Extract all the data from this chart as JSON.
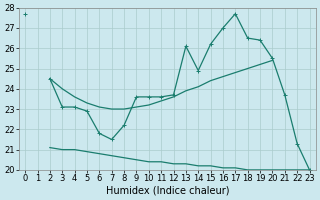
{
  "xlabel": "Humidex (Indice chaleur)",
  "x": [
    0,
    1,
    2,
    3,
    4,
    5,
    6,
    7,
    8,
    9,
    10,
    11,
    12,
    13,
    14,
    15,
    16,
    17,
    18,
    19,
    20,
    21,
    22,
    23
  ],
  "line_jagged": [
    27.7,
    null,
    24.5,
    23.1,
    23.1,
    22.9,
    21.8,
    21.5,
    22.2,
    23.6,
    23.6,
    23.6,
    23.7,
    26.1,
    24.9,
    26.2,
    27.0,
    27.7,
    26.5,
    26.4,
    25.5,
    23.7,
    21.3,
    20.0
  ],
  "line_smooth": [
    null,
    null,
    24.5,
    24.0,
    23.6,
    23.3,
    23.1,
    23.0,
    23.0,
    23.1,
    23.2,
    23.4,
    23.6,
    23.9,
    24.1,
    24.4,
    24.6,
    24.8,
    25.0,
    25.2,
    25.4,
    null,
    null,
    null
  ],
  "line_bottom": [
    null,
    null,
    21.1,
    21.0,
    21.0,
    20.9,
    20.8,
    20.7,
    20.6,
    20.5,
    20.4,
    20.4,
    20.3,
    20.3,
    20.2,
    20.2,
    20.1,
    20.1,
    20.0,
    20.0,
    20.0,
    20.0,
    20.0,
    20.0
  ],
  "ylim": [
    20,
    28
  ],
  "xlim": [
    -0.5,
    23.5
  ],
  "yticks": [
    20,
    21,
    22,
    23,
    24,
    25,
    26,
    27,
    28
  ],
  "xticks": [
    0,
    1,
    2,
    3,
    4,
    5,
    6,
    7,
    8,
    9,
    10,
    11,
    12,
    13,
    14,
    15,
    16,
    17,
    18,
    19,
    20,
    21,
    22,
    23
  ],
  "bg_color": "#cce8ee",
  "grid_color": "#aacccc",
  "line_color": "#1a7d6e",
  "tick_fontsize": 6,
  "label_fontsize": 7
}
